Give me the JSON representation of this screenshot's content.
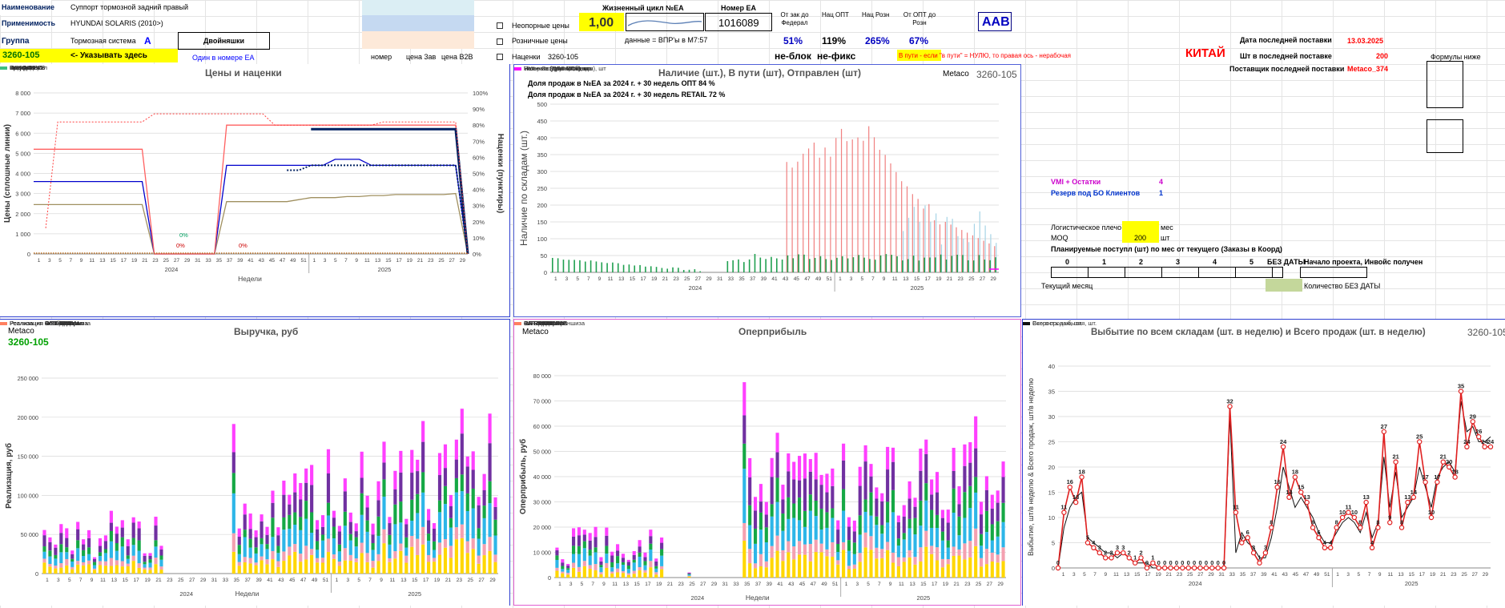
{
  "info": {
    "name_label": "Наименование",
    "name_value": "Суппорт тормозной задний правый",
    "appl_label": "Применимость",
    "appl_value": "HYUNDAI SOLARIS (2010>)",
    "group_label": "Группа",
    "group_value": "Тормозная система",
    "group_letter": "A",
    "doubles_label": "Двойняшки",
    "doubles_value": "Один в номере ЕА",
    "code": "3260-105",
    "code_hint": "<- Указывать здесь",
    "hdr_nomer": "номер",
    "hdr_price3": "цена 3ав",
    "hdr_priceb2b": "цена B2B"
  },
  "flags": {
    "nonref": "Неопорные цены",
    "retail": "Розничные цены",
    "markups": "Наценки",
    "markups_code": "3260-105"
  },
  "lifecycle": {
    "label": "Жизненный цикл №ЕА",
    "value": "1,00",
    "note": "данные = ВПР'ы в М7:57"
  },
  "ea": {
    "label": "Номер ЕА",
    "value": "1016089"
  },
  "ratios": [
    {
      "label": "От зак до Федерал",
      "value": "51%"
    },
    {
      "label": "Нац ОПТ",
      "value": "119%"
    },
    {
      "label": "Нац Розн",
      "value": "265%"
    },
    {
      "label": "От ОПТ до Розн",
      "value": "67%"
    }
  ],
  "block": {
    "noblock": "не-блок",
    "nofix": "не-фикс"
  },
  "aab": "AAB",
  "transit_note": "В пути - если \"в пути\" = НУЛЮ, то правая ось - нерабочая",
  "country": "КИТАЙ",
  "last_supply": {
    "date_label": "Дата последней поставки",
    "date": "13.03.2025",
    "qty_label": "Шт в последней поставке",
    "qty": "200",
    "supplier_label": "Поставщик последней поставки",
    "supplier": "Metaco_374"
  },
  "formulas": "Формулы ниже",
  "vmi": {
    "label": "VMI + Остатки",
    "value": "4"
  },
  "reserve": {
    "label": "Резерв под БО Клиентов",
    "value": "1"
  },
  "logistics": {
    "label": "Логистическое плечо",
    "unit": "мес",
    "moq_label": "MOQ",
    "moq": "200",
    "moq_unit": "шт"
  },
  "planned": {
    "title": "Планируемые поступл (шт) по мес от текущего (Заказы в Коорд)",
    "cols": [
      "0",
      "1",
      "2",
      "3",
      "4",
      "5",
      "БЕЗ ДАТЫ",
      "Начало проекта, Инвойс получен"
    ],
    "current": "Текущий месяц",
    "nodate": "Количество БЕЗ ДАТЫ"
  },
  "chart_data": [
    {
      "id": "prices",
      "type": "line",
      "title": "Цены и наценки",
      "ylabel": "Цены (сплошные линии)",
      "y2label": "Наценки (пунктиры)",
      "xlabel": "Недели",
      "y_ticks": [
        "0",
        "1 000",
        "2 000",
        "3 000",
        "4 000",
        "5 000",
        "6 000",
        "7 000",
        "8 000"
      ],
      "y2_ticks": [
        "0%",
        "10%",
        "20%",
        "30%",
        "40%",
        "50%",
        "60%",
        "70%",
        "80%",
        "90%",
        "100%"
      ],
      "years": [
        "2024",
        "2025"
      ],
      "annotations": [
        "0%",
        "0%",
        "0%"
      ],
      "legend": [
        "Закупка",
        "Федерал",
        "ОПТовая",
        "Розничная",
        "Бренд 1 DD",
        "Бренд 2 DD",
        "Бренд 1 B2B",
        "Бренд 2 B2B",
        "Бренд 3 DD",
        "Бренд 3 B2B",
        "Нац Федерал",
        "Нац ОПТ",
        "Нац Розн"
      ],
      "series": [
        {
          "name": "Закупка",
          "color": "#a09060",
          "values": [
            2450,
            2450,
            2450,
            2450,
            2450,
            2450,
            2450,
            2450,
            2450,
            2450,
            0,
            0,
            0,
            0,
            0,
            0,
            2600,
            2600,
            2600,
            2600,
            2600,
            2600,
            2700,
            2800,
            2800,
            2800,
            2850,
            2850,
            2900,
            2900,
            2950,
            2950,
            2950,
            2950,
            2950,
            3000,
            0
          ]
        },
        {
          "name": "Федерал",
          "color": "#0000cc",
          "values": [
            3600,
            3600,
            3600,
            3600,
            3600,
            3600,
            3600,
            3600,
            3600,
            3600,
            0,
            0,
            0,
            0,
            0,
            0,
            4400,
            4400,
            4400,
            4400,
            4400,
            4400,
            4400,
            4400,
            4400,
            4700,
            4700,
            4700,
            4400,
            4400,
            4400,
            4400,
            4400,
            4400,
            4400,
            4400,
            0
          ]
        },
        {
          "name": "ОПТовая",
          "color": "#ff6060",
          "values": [
            5200,
            5200,
            5200,
            5200,
            5200,
            5200,
            5200,
            5200,
            5200,
            5200,
            0,
            0,
            0,
            0,
            0,
            0,
            6400,
            6400,
            6400,
            6400,
            6400,
            6400,
            6400,
            6400,
            6400,
            6400,
            6400,
            6400,
            6400,
            6400,
            6400,
            6400,
            6400,
            6400,
            6400,
            6400,
            0
          ]
        },
        {
          "name": "Бренд 2 B2B",
          "color": "#002060",
          "values": [
            null,
            null,
            null,
            null,
            null,
            null,
            null,
            null,
            null,
            null,
            null,
            null,
            null,
            null,
            null,
            null,
            null,
            null,
            null,
            null,
            null,
            null,
            null,
            6200,
            6200,
            6200,
            6200,
            6200,
            6200,
            6200,
            6200,
            6200,
            6200,
            6200,
            6200,
            6200,
            0
          ]
        }
      ]
    },
    {
      "id": "stock",
      "type": "bar",
      "title": "Наличие (шт.), В пути (шт), Отправлен (шт)",
      "brand": "Metaco",
      "code": "3260-105",
      "ylabel": "Наличие по складам (шт.)",
      "notes": [
        "Доля продаж в №ЕА за 2024 г. + 30 недель ОПТ 84 %",
        "Доля продаж в №ЕА за 2024 г. + 30 недель RETAIL 72 %"
      ],
      "y_ticks": [
        "0",
        "50",
        "100",
        "150",
        "200",
        "250",
        "300",
        "350",
        "400",
        "450",
        "500"
      ],
      "ylim": [
        0,
        500
      ],
      "years": [
        "2024",
        "2025"
      ],
      "legend": [
        "Наличие (ЦС - СПб), шт",
        "Наличие Розница, шт",
        "Наличие (Другие склады), шт",
        "Наличие (ЦС - МСК), шт",
        "Резерв под БО Клиентов",
        "VMI + Остатки"
      ]
    },
    {
      "id": "revenue",
      "type": "bar",
      "title": "Выручка, руб",
      "brand": "Metaco",
      "code": "3260-105",
      "ylabel": "Реализация, руб",
      "xlabel": "Недели",
      "y_ticks": [
        "0",
        "50 000",
        "100 000",
        "150 000",
        "200 000",
        "250 000"
      ],
      "ylim": [
        0,
        250000
      ],
      "years": [
        "2024",
        "2025"
      ],
      "legend": [
        "Реализация ОПТ Федерал",
        "Реализация ОПТ Дилеры",
        "Реализация ОПТ B2B",
        "Реализация ОПТ Франшиза",
        "Реализация Retail B2B",
        "Реализация Retail B2C",
        "Реализация Retail Франшиза",
        "Реализация Service",
        "Реализация INET B2B",
        "Реализация INET B2C",
        "Реализация ОПТ ФИнМ",
        "Реализация Retail ФИнМ"
      ]
    },
    {
      "id": "margin",
      "type": "bar",
      "title": "Оперприбыль",
      "brand": "Metaco",
      "ylabel": "Оперприбыль, руб",
      "xlabel": "Недели",
      "y_ticks": [
        "0",
        "10 000",
        "20 000",
        "30 000",
        "40 000",
        "50 000",
        "60 000",
        "70 000",
        "80 000"
      ],
      "ylim": [
        0,
        80000
      ],
      "years": [
        "2024",
        "2025"
      ],
      "legend": [
        "ОПТ Федерал",
        "ОПТ Дилер",
        "ОПТ B2B",
        "ОПТ Франшиза",
        "EA-RETAIL B2B",
        "EA-RETAIL B2C",
        "EA-RETAIL Франшиза",
        "EA-SERVICE",
        "INTERNET B2B",
        "INTERNET B2C",
        "ОПТ ФИнМ",
        "RETAIL ФИнМ"
      ]
    },
    {
      "id": "sales",
      "type": "line",
      "title": "Выбытие по всем складам (шт. в неделю) и Всего продаж (шт. в неделю)",
      "code": "3260-105",
      "ylabel": "Выбытие, шт/в неделю & Всего продаж, шт/в неделю",
      "y_ticks": [
        "0",
        "5",
        "10",
        "15",
        "20",
        "25",
        "30",
        "35",
        "40"
      ],
      "ylim": [
        0,
        40
      ],
      "years": [
        "2024",
        "2025"
      ],
      "legend": [
        "Всего продаж, шт.",
        "Скорость выбытия, шт."
      ],
      "series": [
        {
          "name": "Всего продаж, шт.",
          "values": [
            0,
            11,
            16,
            13,
            18,
            5,
            4,
            3,
            2,
            2,
            3,
            3,
            2,
            1,
            2,
            0,
            1,
            0,
            0,
            0,
            0,
            0,
            0,
            0,
            0,
            0,
            0,
            0,
            0,
            32,
            11,
            5,
            6,
            3,
            1,
            3,
            8,
            16,
            24,
            14,
            18,
            15,
            13,
            8,
            6,
            4,
            4,
            8,
            10,
            11,
            10,
            8,
            13,
            4,
            8,
            27,
            9,
            21,
            8,
            13,
            14,
            25,
            17,
            10,
            17,
            21,
            20,
            18,
            35,
            24,
            29,
            26,
            24,
            24
          ]
        },
        {
          "name": "Скорость выбытия, шт.",
          "values": [
            0,
            8,
            12,
            14,
            15,
            6,
            5,
            4,
            3,
            3,
            2,
            3,
            2,
            1,
            1,
            1,
            0,
            0,
            0,
            0,
            0,
            0,
            0,
            0,
            0,
            0,
            0,
            0,
            0,
            30,
            3,
            7,
            5,
            4,
            2,
            2,
            6,
            12,
            20,
            16,
            12,
            14,
            12,
            10,
            7,
            5,
            5,
            7,
            9,
            10,
            9,
            7,
            11,
            6,
            9,
            22,
            12,
            19,
            10,
            12,
            14,
            20,
            16,
            12,
            18,
            20,
            21,
            19,
            33,
            27,
            28,
            25,
            25,
            26
          ]
        }
      ]
    }
  ]
}
